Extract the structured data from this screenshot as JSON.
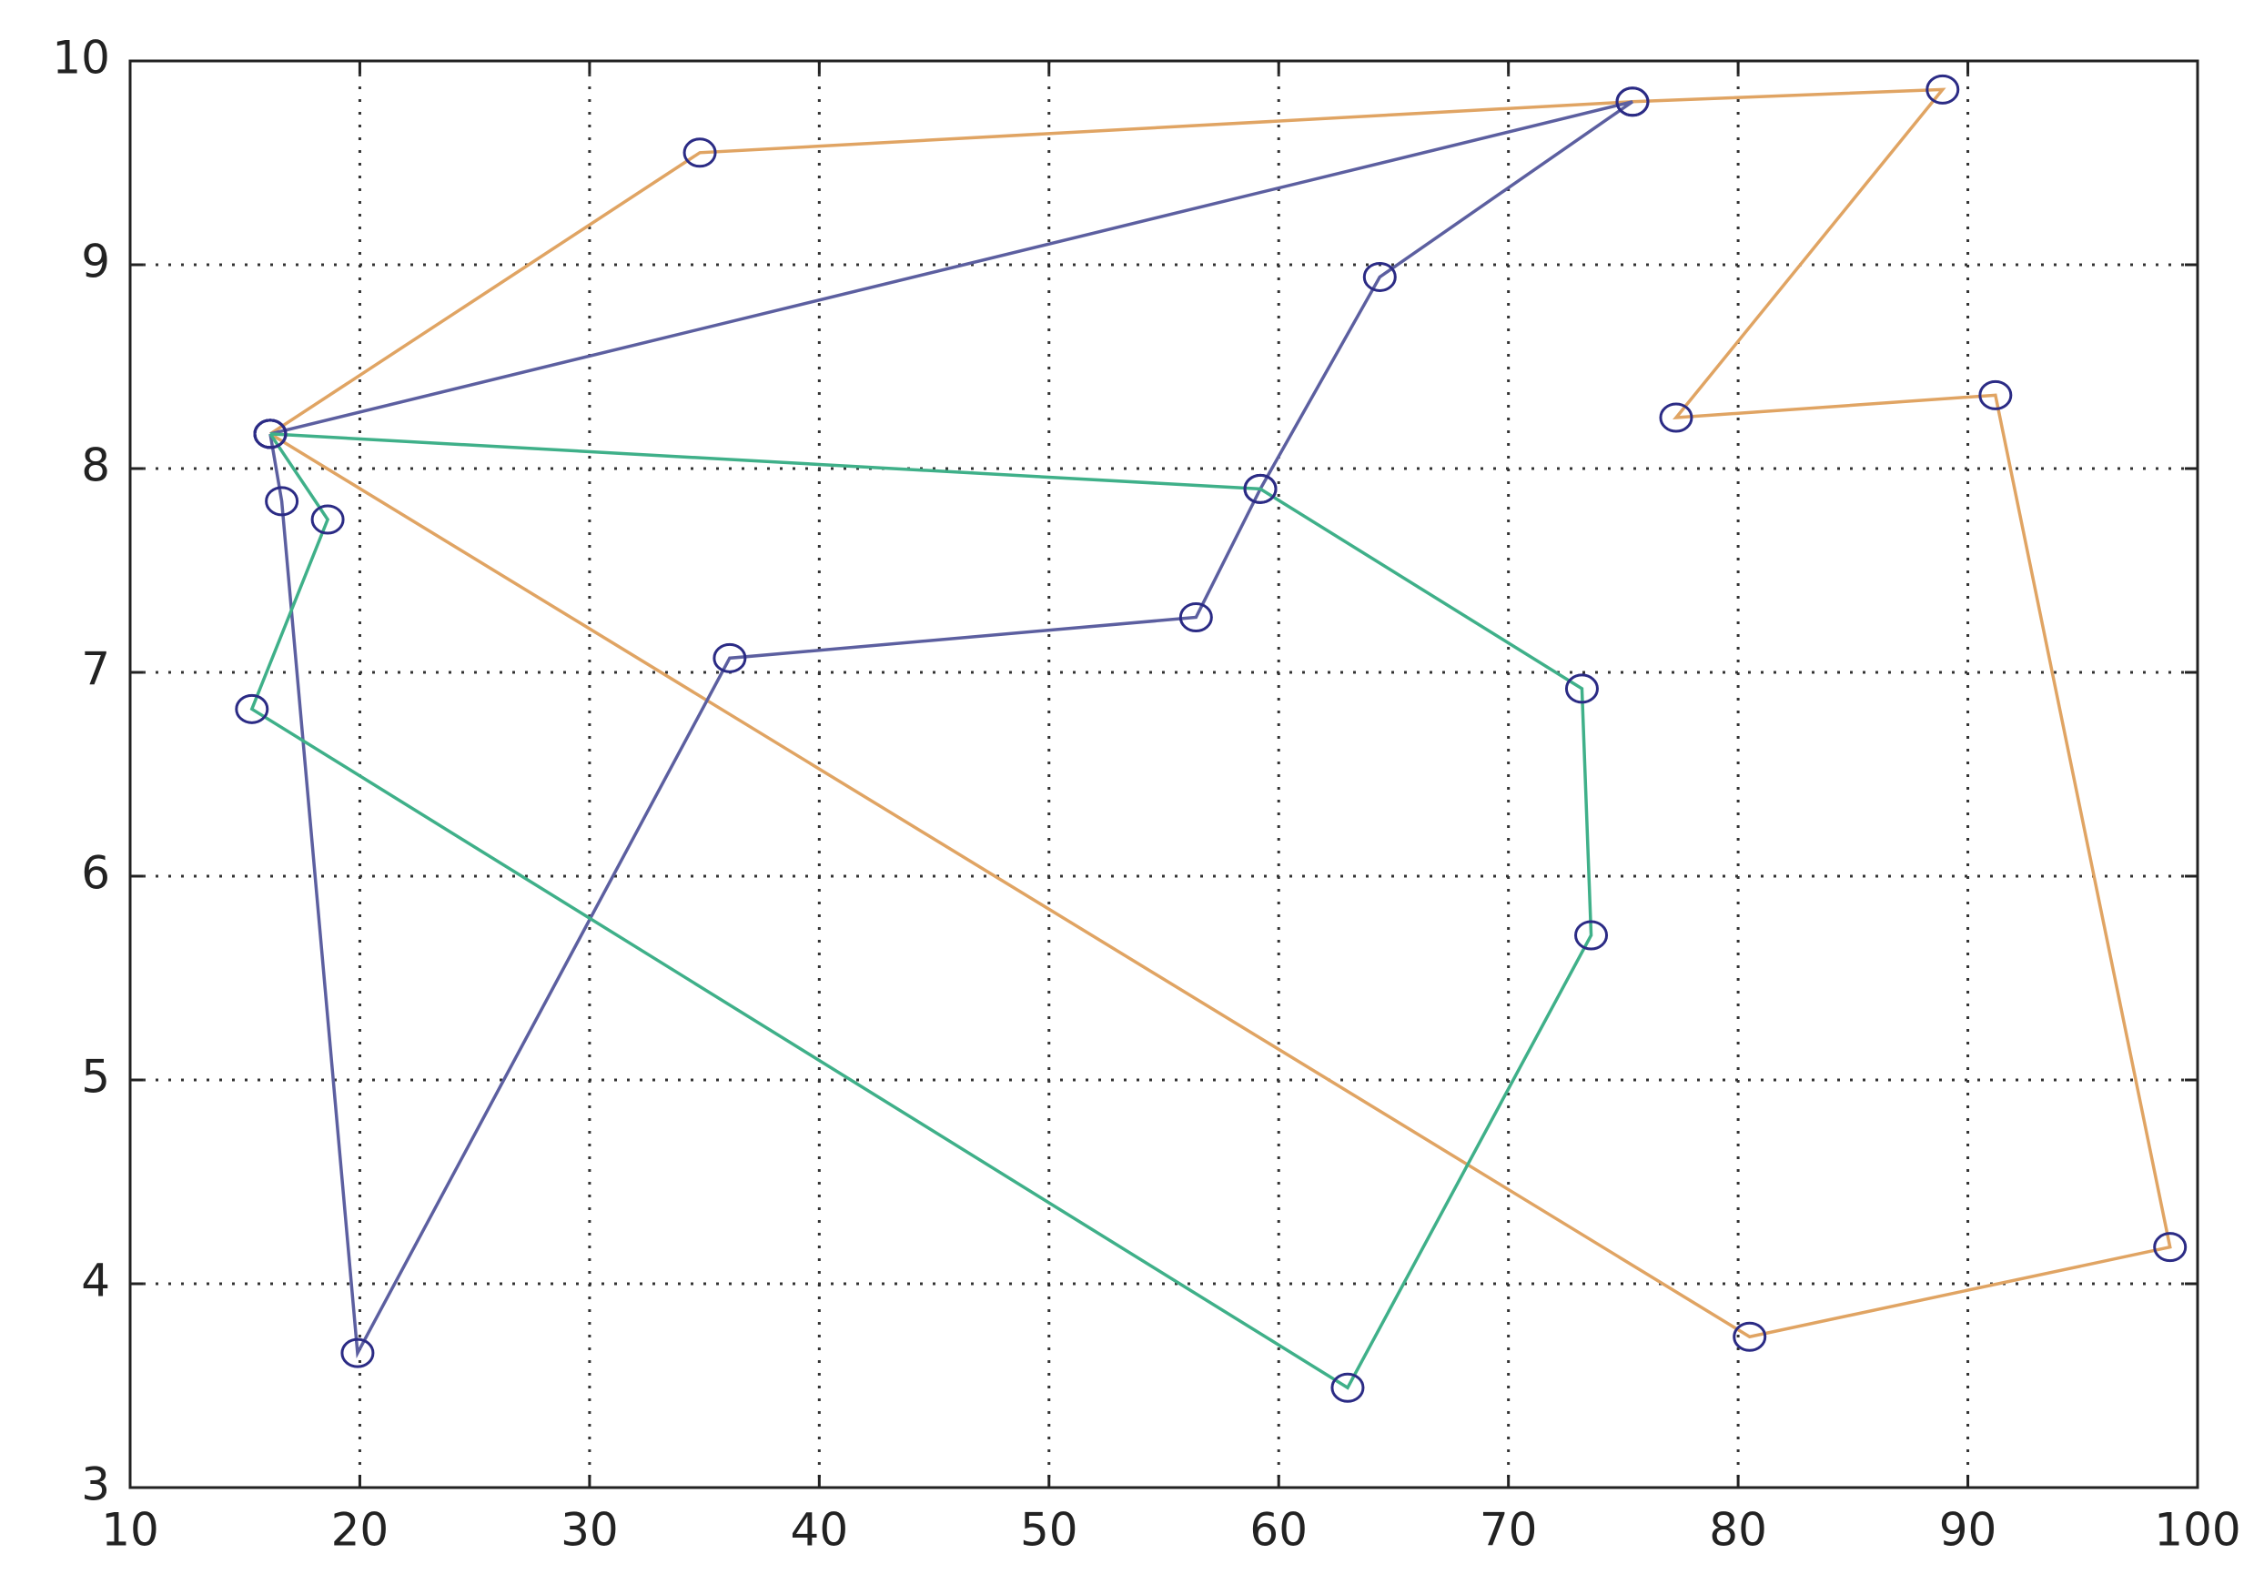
{
  "chart_data": {
    "type": "line",
    "series": [
      {
        "color": "#e0a463",
        "x": [
          16.1,
          34.8,
          75.4,
          88.9,
          77.3,
          91.2,
          98.8,
          80.5,
          16.1
        ],
        "values": [
          8.17,
          9.55,
          9.8,
          9.86,
          8.25,
          8.36,
          4.18,
          3.74,
          8.17
        ]
      },
      {
        "color": "#5c5fa0",
        "x": [
          16.1,
          75.4,
          64.4,
          59.2,
          56.4,
          36.1,
          19.9,
          16.6,
          16.1
        ],
        "values": [
          8.17,
          9.8,
          8.94,
          7.9,
          7.27,
          7.07,
          3.66,
          7.84,
          8.17
        ]
      },
      {
        "color": "#3fb089",
        "x": [
          16.1,
          59.2,
          73.2,
          73.6,
          63.0,
          15.3,
          18.6,
          16.1
        ],
        "values": [
          8.17,
          7.9,
          6.92,
          5.71,
          3.49,
          6.82,
          7.75,
          8.17
        ]
      }
    ],
    "marker": "circle",
    "marker_color": "#2b2b85",
    "xlim": [
      10,
      100
    ],
    "xticks": [
      10,
      20,
      30,
      40,
      50,
      60,
      70,
      80,
      90,
      100
    ],
    "ylim": [
      3,
      10
    ],
    "yticks": [
      3,
      4,
      5,
      6,
      7,
      8,
      9,
      10
    ],
    "grid": true
  }
}
